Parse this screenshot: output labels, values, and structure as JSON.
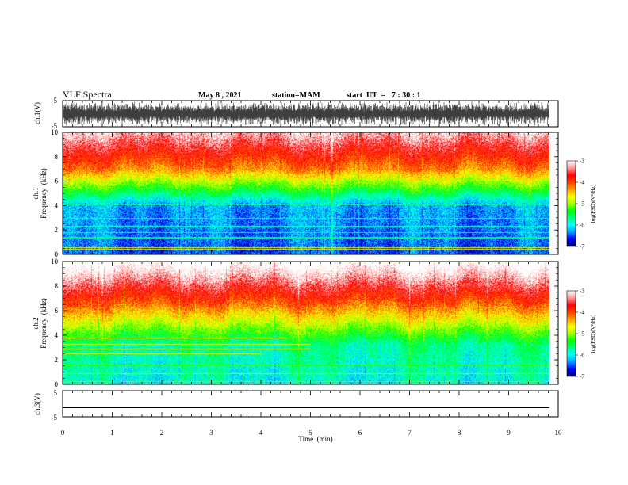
{
  "header": {
    "title": "VLF Spectra",
    "date": "May 8  , 2021",
    "station": "station=MAM",
    "start": "start  UT  =   7 : 30 : 1"
  },
  "colors": {
    "ramp": [
      "#000080",
      "#0000ff",
      "#00a0ff",
      "#00ffff",
      "#00ff80",
      "#00ff00",
      "#a0ff00",
      "#ffff00",
      "#ffa000",
      "#ff4000",
      "#ff0000",
      "#ff9090",
      "#ffffff"
    ],
    "trace": "#000000"
  },
  "chart_data": [
    {
      "type": "line",
      "panel": "ch1-waveform",
      "ylabel": "ch.1(V)",
      "ylim": [
        -5,
        5
      ],
      "yticks": [
        "5",
        "-5"
      ],
      "xlim": [
        0,
        10
      ],
      "description_level": "dense noise waveform spanning 0 to about 9.8 min"
    },
    {
      "type": "heatmap",
      "panel": "ch1-spectrogram",
      "ylabel_line1": "ch.1",
      "ylabel_line2": "Frequency  (kHz)",
      "ylim": [
        0,
        10
      ],
      "yticks": [
        "0",
        "2",
        "4",
        "6",
        "8",
        "10"
      ],
      "xlim": [
        0,
        10
      ],
      "data_end_min": 9.82,
      "colorbar": {
        "label": "log(PSD)(V²/Hz)",
        "range": [
          -7,
          -3
        ],
        "ticks": [
          "-3",
          "-4",
          "-5",
          "-6",
          "-7"
        ]
      }
    },
    {
      "type": "heatmap",
      "panel": "ch2-spectrogram",
      "ylabel_line1": "ch.2",
      "ylabel_line2": "Frequency  (kHz)",
      "ylim": [
        0,
        10
      ],
      "yticks": [
        "0",
        "2",
        "4",
        "6",
        "8",
        "10"
      ],
      "xlim": [
        0,
        10
      ],
      "data_end_min": 9.82,
      "colorbar": {
        "label": "log(PSD)(V²/Hz)",
        "range": [
          -7,
          -3
        ],
        "ticks": [
          "-3",
          "-4",
          "-5",
          "-6",
          "-7"
        ]
      }
    },
    {
      "type": "line",
      "panel": "ch3-waveform",
      "ylabel": "ch.3(V)",
      "ylim": [
        -5,
        5
      ],
      "yticks": [
        "5",
        "-5"
      ],
      "xlim": [
        0,
        10
      ],
      "xlabel": "Time  (min)",
      "xticks": [
        "0",
        "1",
        "2",
        "3",
        "4",
        "5",
        "6",
        "7",
        "8",
        "9",
        "10"
      ],
      "trace_level_v": -1.5
    }
  ]
}
